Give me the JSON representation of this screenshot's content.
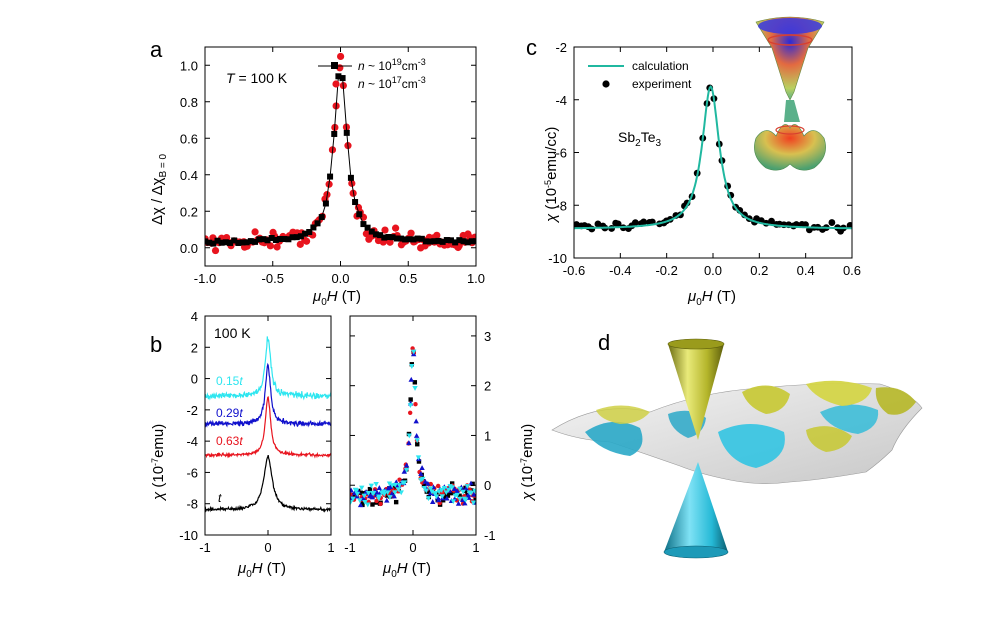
{
  "colors": {
    "black": "#000000",
    "red": "#e8141e",
    "cyan": "#2ee6f0",
    "blue": "#1010cc",
    "teal": "#20b8a0",
    "cone_gold": "#bfc030",
    "cone_cyan": "#25b9d6",
    "surface_grey": "#d8d8d8"
  },
  "panel_a": {
    "letter": "a",
    "annotation": {
      "prefix": "T",
      "text": " = 100 K"
    },
    "ylabel": "Δχ / Δχ",
    "ylabel_sub": "B = 0",
    "xlabel": {
      "mu": "μ",
      "sub": "0",
      "rest": "H (T)"
    },
    "legend": [
      {
        "marker": "square-line",
        "prefix": "n",
        "text": " ~ 10",
        "sup": "19",
        "unit": "cm",
        "unit_sup": "-3"
      },
      {
        "marker": "circle",
        "prefix": "n",
        "text": " ~ 10",
        "sup": "17",
        "unit": "cm",
        "unit_sup": "-3"
      }
    ]
  },
  "panel_b": {
    "letter": "b",
    "annotation": "100 K",
    "ylabel": {
      "chi": "χ",
      "text": " (10",
      "sup": "-7",
      "unit": "emu)"
    },
    "ylabel_right": {
      "chi": "χ",
      "text": " (10",
      "sup": "-7",
      "unit": "emu)"
    },
    "xlabel": {
      "mu": "μ",
      "sub": "0",
      "rest": "H (T)"
    },
    "thickness_labels": [
      {
        "value": "0.15",
        "t": "t"
      },
      {
        "value": "0.29",
        "t": "t"
      },
      {
        "value": "0.63",
        "t": "t"
      },
      {
        "value": "",
        "t": "t"
      }
    ]
  },
  "panel_c": {
    "letter": "c",
    "material": {
      "a": "Sb",
      "a_sub": "2",
      "b": "Te",
      "b_sub": "3"
    },
    "ylabel": {
      "chi": "χ",
      "text": " (10",
      "sup": "-5",
      "unit": "emu/cc)"
    },
    "xlabel": {
      "mu": "μ",
      "sub": "0",
      "rest": "H (T)"
    },
    "legend": [
      {
        "marker": "line",
        "text": "calculation"
      },
      {
        "marker": "circle",
        "text": "experiment"
      }
    ]
  },
  "panel_d": {
    "letter": "d",
    "illustration": "Dirac cone above and below a rippled Fermi surface"
  },
  "chart_data": [
    {
      "id": "a",
      "type": "scatter",
      "xlim": [
        -1.0,
        1.0
      ],
      "ylim": [
        -0.1,
        1.1
      ],
      "xticks": [
        -1.0,
        -0.5,
        0.0,
        0.5,
        1.0
      ],
      "xtick_labels": [
        "-1.0",
        "-0.5",
        "0.0",
        "0.5",
        "1.0"
      ],
      "yticks": [
        0.0,
        0.2,
        0.4,
        0.6,
        0.8,
        1.0
      ],
      "ytick_labels": [
        "0.0",
        "0.2",
        "0.4",
        "0.6",
        "0.8",
        "1.0"
      ],
      "series": [
        {
          "name": "n ~ 1e19 cm-3",
          "color": "#000000",
          "marker": "square",
          "line": true,
          "model": {
            "type": "lorentzian",
            "center": 0.0,
            "width": 0.058,
            "amplitude": 0.97,
            "offset": 0.03
          },
          "n_points": 66
        },
        {
          "name": "n ~ 1e17 cm-3",
          "color": "#e8141e",
          "marker": "circle",
          "line": false,
          "model": {
            "type": "lorentzian",
            "center": 0.0,
            "width": 0.06,
            "amplitude": 0.97,
            "offset": 0.03
          },
          "n_points": 110,
          "noise": 0.06
        }
      ]
    },
    {
      "id": "b_left",
      "type": "line",
      "xlim": [
        -1,
        1
      ],
      "ylim": [
        -10,
        4
      ],
      "xticks": [
        -1,
        0,
        1
      ],
      "xtick_labels": [
        "-1",
        "0",
        "1"
      ],
      "yticks": [
        -10,
        -8,
        -6,
        -4,
        -2,
        0,
        2,
        4
      ],
      "ytick_labels": [
        "-10",
        "-8",
        "-6",
        "-4",
        "-2",
        "0",
        "2",
        "4"
      ],
      "series": [
        {
          "name": "0.15t",
          "color": "#2ee6f0",
          "baseline": -1.1,
          "peak": 2.6,
          "width": 0.05,
          "noise": 0.25
        },
        {
          "name": "0.29t",
          "color": "#1010cc",
          "baseline": -2.9,
          "peak": 0.8,
          "width": 0.05,
          "noise": 0.2
        },
        {
          "name": "0.63t",
          "color": "#e8141e",
          "baseline": -4.9,
          "peak": -1.2,
          "width": 0.05,
          "noise": 0.12
        },
        {
          "name": "t",
          "color": "#000000",
          "baseline": -8.4,
          "peak": -5.0,
          "width": 0.08,
          "noise": 0.12
        }
      ]
    },
    {
      "id": "b_right",
      "type": "scatter",
      "xlim": [
        -1,
        1
      ],
      "ylim": [
        -1,
        3.4
      ],
      "xticks": [
        -1,
        0,
        1
      ],
      "xtick_labels": [
        "-1",
        "0",
        "1"
      ],
      "yticks": [
        -1,
        0,
        1,
        2,
        3
      ],
      "ytick_labels": [
        "-1",
        "0",
        "1",
        "2",
        "3"
      ],
      "series": [
        {
          "name": "t",
          "color": "#000000",
          "marker": "square"
        },
        {
          "name": "0.63t",
          "color": "#e8141e",
          "marker": "circle"
        },
        {
          "name": "0.29t",
          "color": "#1010cc",
          "marker": "triangle"
        },
        {
          "name": "0.15t",
          "color": "#2ee6f0",
          "marker": "triangle-down"
        }
      ],
      "model": {
        "type": "lorentzian",
        "center": 0.0,
        "width": 0.05,
        "amplitude": 3.0,
        "offset": -0.2,
        "noise": 0.25
      }
    },
    {
      "id": "c",
      "type": "scatter",
      "xlim": [
        -0.6,
        0.6
      ],
      "ylim": [
        -10,
        -2
      ],
      "xticks": [
        -0.6,
        -0.4,
        -0.2,
        0.0,
        0.2,
        0.4,
        0.6
      ],
      "xtick_labels": [
        "-0.6",
        "-0.4",
        "-0.2",
        "0.0",
        "0.2",
        "0.4",
        "0.6"
      ],
      "yticks": [
        -10,
        -8,
        -6,
        -4,
        -2
      ],
      "ytick_labels": [
        "-10",
        "-8",
        "-6",
        "-4",
        "-2"
      ],
      "series": [
        {
          "name": "calculation",
          "color": "#20b8a0",
          "type": "line",
          "model": {
            "type": "lorentzian",
            "center": -0.01,
            "width": 0.045,
            "amplitude": 5.4,
            "offset": -8.9
          }
        },
        {
          "name": "experiment",
          "color": "#000000",
          "type": "scatter",
          "n_points": 64,
          "noise": 0.18,
          "model": {
            "type": "lorentzian",
            "center": -0.01,
            "width": 0.045,
            "amplitude": 5.4,
            "offset": -8.85
          }
        }
      ]
    }
  ]
}
